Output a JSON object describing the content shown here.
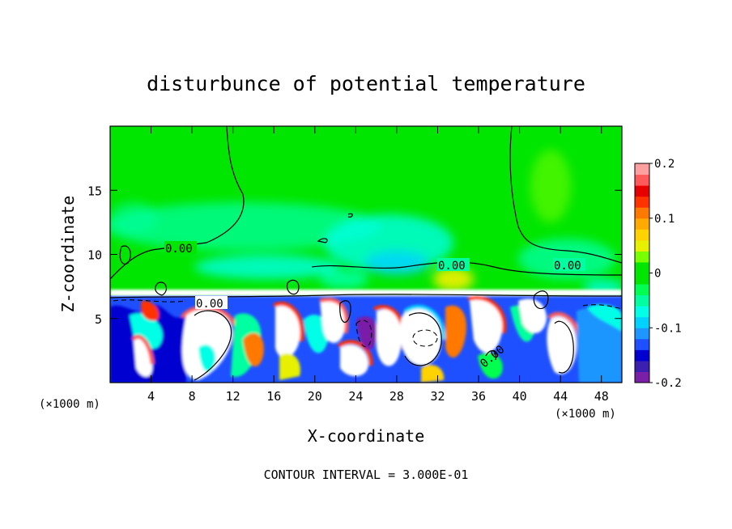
{
  "chart_data": {
    "type": "heatmap",
    "title": "disturbunce of potential temperature",
    "xlabel": "X-coordinate",
    "ylabel": "Z-coordinate",
    "x_unit_left": "(×1000 m)",
    "x_unit_right": "(×1000 m)",
    "xlim": [
      0,
      50
    ],
    "ylim": [
      0,
      20
    ],
    "x_ticks": [
      4,
      8,
      12,
      16,
      20,
      24,
      28,
      32,
      36,
      40,
      44,
      48
    ],
    "y_ticks": [
      5,
      10,
      15
    ],
    "contour_labels": [
      {
        "text": "0.00",
        "x": 6.7,
        "z": 10.3
      },
      {
        "text": "0.00",
        "x": 9.7,
        "z": 6.2
      },
      {
        "text": "0.00",
        "x": 33.0,
        "z": 9.0
      },
      {
        "text": "0.00",
        "x": 44.6,
        "z": 9.0
      },
      {
        "text": "0.00",
        "x": 37.2,
        "z": 2.0
      }
    ],
    "colorbar": {
      "range": [
        -0.2,
        0.2
      ],
      "tick_labels": [
        "0.2",
        "0.1",
        "0",
        "-0.1",
        "-0.2"
      ],
      "colors": [
        "#7a1fa8",
        "#3a1fb0",
        "#0000d0",
        "#1e50ff",
        "#1e96ff",
        "#00d2ff",
        "#00ffe6",
        "#00ffa0",
        "#00ff50",
        "#00e600",
        "#00e600",
        "#78ff00",
        "#e6f000",
        "#ffd200",
        "#ffaa00",
        "#ff7800",
        "#ff3200",
        "#e60000",
        "#ff5a5a",
        "#ffa0a0"
      ]
    },
    "footer": "CONTOUR INTERVAL = 3.000E-01"
  }
}
